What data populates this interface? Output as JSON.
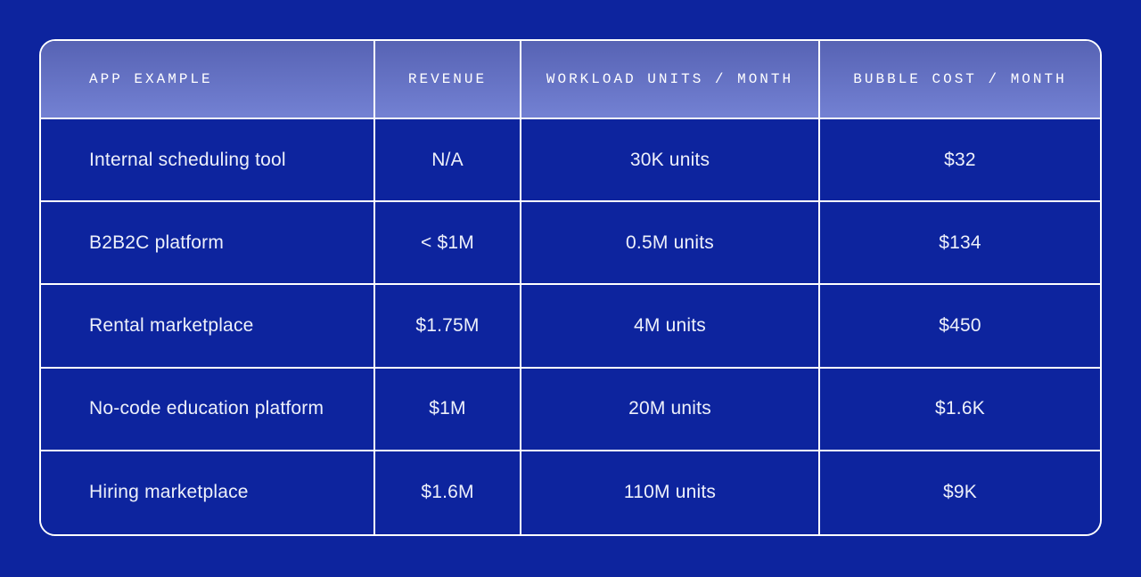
{
  "colors": {
    "page_background": "#0d249e",
    "cell_background": "#0d249e",
    "grid_border": "#ffffff",
    "header_gradient_top": "#5763b4",
    "header_gradient_bottom": "#7381d3",
    "header_text": "#ffffff",
    "body_text": "#edf0fa"
  },
  "table": {
    "headers": [
      "APP EXAMPLE",
      "REVENUE",
      "WORKLOAD UNITS / MONTH",
      "BUBBLE COST / MONTH"
    ],
    "rows": [
      [
        "Internal scheduling tool",
        "N/A",
        "30K units",
        "$32"
      ],
      [
        "B2B2C platform",
        "< $1M",
        "0.5M units",
        "$134"
      ],
      [
        "Rental marketplace",
        "$1.75M",
        "4M units",
        "$450"
      ],
      [
        "No-code education platform",
        "$1M",
        "20M units",
        "$1.6K"
      ],
      [
        "Hiring marketplace",
        "$1.6M",
        "110M units",
        "$9K"
      ]
    ]
  },
  "chart_data": {
    "type": "table",
    "title": "",
    "columns": [
      "APP EXAMPLE",
      "REVENUE",
      "WORKLOAD UNITS / MONTH",
      "BUBBLE COST / MONTH"
    ],
    "rows": [
      [
        "Internal scheduling tool",
        "N/A",
        "30K units",
        "$32"
      ],
      [
        "B2B2C platform",
        "< $1M",
        "0.5M units",
        "$134"
      ],
      [
        "Rental marketplace",
        "$1.75M",
        "4M units",
        "$450"
      ],
      [
        "No-code education platform",
        "$1M",
        "20M units",
        "$1.6K"
      ],
      [
        "Hiring marketplace",
        "$1.6M",
        "110M units",
        "$9K"
      ]
    ]
  }
}
